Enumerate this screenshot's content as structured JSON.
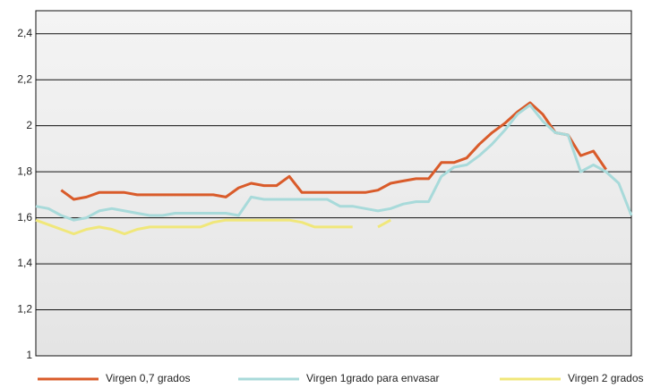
{
  "chart_data": {
    "type": "line",
    "categories": [
      null,
      null,
      null,
      null,
      null,
      null,
      null,
      null,
      null,
      null,
      null,
      null,
      null,
      null,
      null,
      null,
      null,
      null,
      null,
      null,
      null,
      null,
      null,
      null,
      null,
      null,
      null,
      null,
      null,
      null,
      null,
      null,
      null,
      null,
      null,
      null,
      null,
      null,
      null,
      null,
      null,
      null,
      null,
      null,
      null,
      null,
      null,
      null
    ],
    "series": [
      {
        "name": "Virgen 0,7 grados",
        "color": "#d95b2a",
        "values": [
          null,
          null,
          1.72,
          1.68,
          1.69,
          1.71,
          1.71,
          1.71,
          1.7,
          1.7,
          1.7,
          1.7,
          1.7,
          1.7,
          1.7,
          1.69,
          1.73,
          1.75,
          1.74,
          1.74,
          1.78,
          1.71,
          1.71,
          1.71,
          1.71,
          1.71,
          1.71,
          1.72,
          1.75,
          1.76,
          1.77,
          1.77,
          1.84,
          1.84,
          1.86,
          1.92,
          1.97,
          2.01,
          2.06,
          2.1,
          2.05,
          1.97,
          1.96,
          1.87,
          1.89,
          1.81,
          null,
          null
        ]
      },
      {
        "name": "Virgen 1grado para envasar",
        "color": "#a8dada",
        "values": [
          1.65,
          1.64,
          1.61,
          1.59,
          1.6,
          1.63,
          1.64,
          1.63,
          1.62,
          1.61,
          1.61,
          1.62,
          1.62,
          1.62,
          1.62,
          1.62,
          1.61,
          1.69,
          1.68,
          1.68,
          1.68,
          1.68,
          1.68,
          1.68,
          1.65,
          1.65,
          1.64,
          1.63,
          1.64,
          1.66,
          1.67,
          1.67,
          1.78,
          1.82,
          1.83,
          1.87,
          1.92,
          1.98,
          2.05,
          2.09,
          2.02,
          1.97,
          1.96,
          1.8,
          1.83,
          1.8,
          1.75,
          1.61
        ]
      },
      {
        "name": "Virgen 2 grados",
        "color": "#f0e77a",
        "values": [
          1.59,
          1.57,
          1.55,
          1.53,
          1.55,
          1.56,
          1.55,
          1.53,
          1.55,
          1.56,
          1.56,
          1.56,
          1.56,
          1.56,
          1.58,
          1.59,
          1.59,
          1.59,
          1.59,
          1.59,
          1.59,
          1.58,
          1.56,
          1.56,
          1.56,
          1.56,
          null,
          1.56,
          1.59,
          null,
          null,
          null,
          null,
          null,
          null,
          null,
          null,
          null,
          null,
          null,
          null,
          null,
          null,
          null,
          null,
          null,
          null,
          null
        ]
      }
    ],
    "ylim": [
      1,
      2.5
    ],
    "yticks": [
      1,
      {
        "value": 1.2,
        "label": "1,2"
      },
      {
        "value": 1.4,
        "label": "1,4"
      },
      {
        "value": 1.6,
        "label": "1,6"
      },
      {
        "value": 1.8,
        "label": "1,8"
      },
      2,
      {
        "value": 2.2,
        "label": "2,2"
      },
      {
        "value": 2.4,
        "label": "2,4"
      }
    ],
    "grid": true
  }
}
